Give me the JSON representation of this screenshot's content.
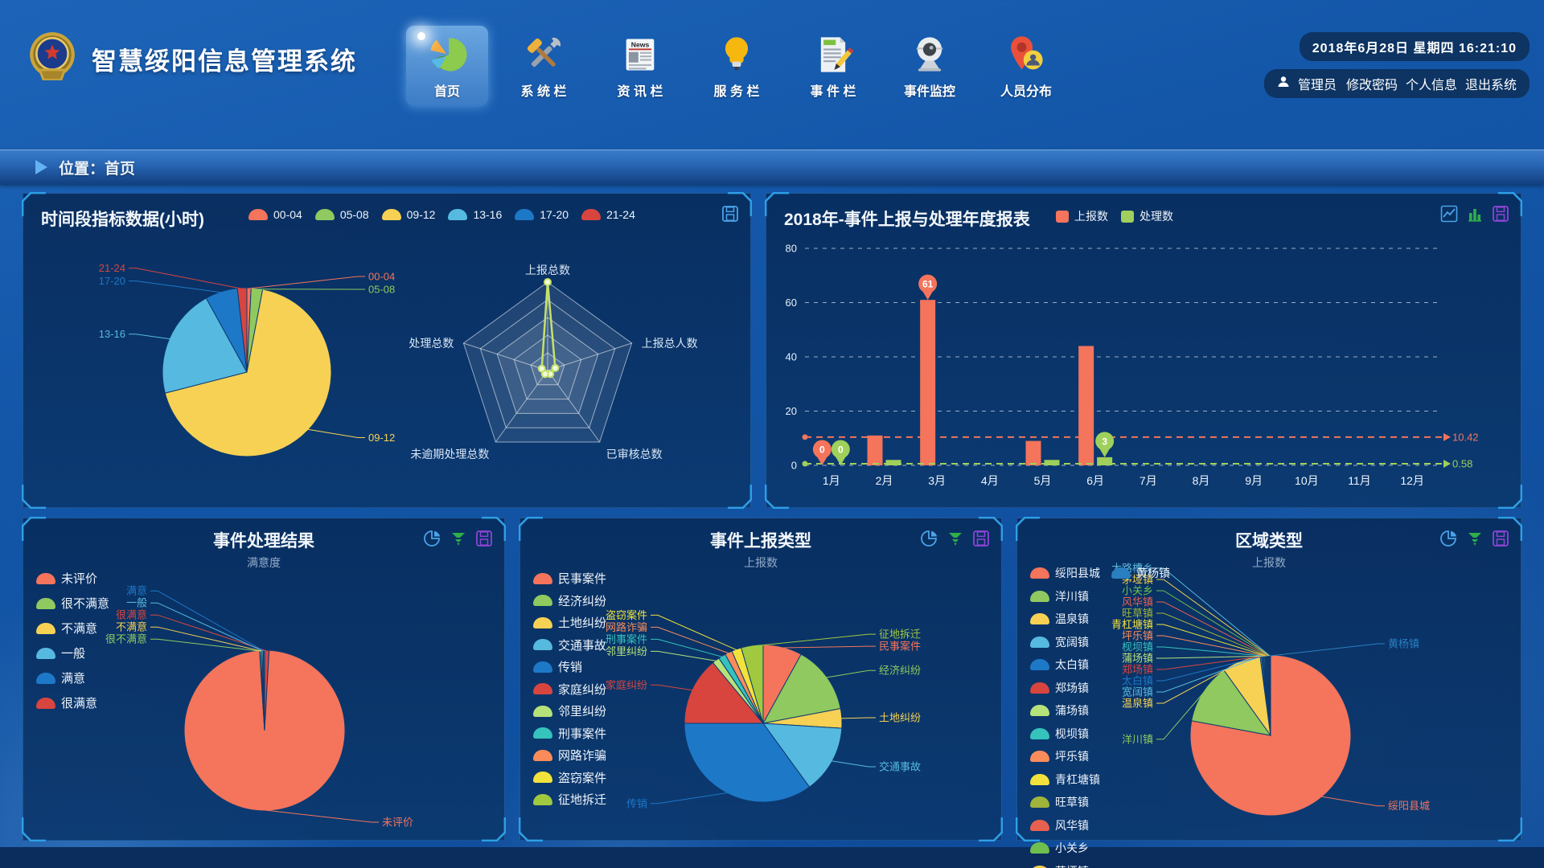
{
  "app": {
    "title": "智慧绥阳信息管理系统",
    "datetime": "2018年6月28日 星期四 16:21:10",
    "news_icon_text": "News",
    "user": {
      "name": "管理员",
      "links": [
        "修改密码",
        "个人信息",
        "退出系统"
      ]
    },
    "nav": [
      {
        "key": "home",
        "label": "首页",
        "icon": "home-pie",
        "active": true
      },
      {
        "key": "system",
        "label": "系 统 栏",
        "icon": "tools",
        "active": false
      },
      {
        "key": "news",
        "label": "资 讯 栏",
        "icon": "news",
        "active": false
      },
      {
        "key": "service",
        "label": "服 务 栏",
        "icon": "bulb",
        "active": false
      },
      {
        "key": "events",
        "label": "事 件 栏",
        "icon": "doc-pencil",
        "active": false
      },
      {
        "key": "event-monitor",
        "label": "事件监控",
        "icon": "webcam",
        "active": false
      },
      {
        "key": "people-distribution",
        "label": "人员分布",
        "icon": "map-pin",
        "active": false
      }
    ]
  },
  "breadcrumb": {
    "label": "位置：首页"
  },
  "panels": [
    {
      "id": "time",
      "title": "时间段指标数据(小时)",
      "icons": [
        {
          "name": "save-icon",
          "glyph": "save",
          "color": "#4aa3e8"
        }
      ]
    },
    {
      "id": "year",
      "title": "2018年-事件上报与处理年度报表",
      "icons": [
        {
          "name": "line-chart-icon",
          "glyph": "line",
          "color": "#4aa3e8"
        },
        {
          "name": "bar-chart-icon",
          "glyph": "bar",
          "color": "#2fae4a"
        },
        {
          "name": "save-icon",
          "glyph": "save",
          "color": "#8e44d8"
        }
      ]
    },
    {
      "id": "satisfy",
      "title": "事件处理结果",
      "subtitle": "满意度",
      "icons": [
        {
          "name": "pie-chart-icon",
          "glyph": "pie",
          "color": "#4aa3e8"
        },
        {
          "name": "funnel-icon",
          "glyph": "funnel",
          "color": "#2fae4a"
        },
        {
          "name": "save-icon",
          "glyph": "save",
          "color": "#8e44d8"
        }
      ]
    },
    {
      "id": "type",
      "title": "事件上报类型",
      "subtitle": "上报数",
      "icons": [
        {
          "name": "pie-chart-icon",
          "glyph": "pie",
          "color": "#4aa3e8"
        },
        {
          "name": "funnel-icon",
          "glyph": "funnel",
          "color": "#2fae4a"
        },
        {
          "name": "save-icon",
          "glyph": "save",
          "color": "#8e44d8"
        }
      ]
    },
    {
      "id": "region",
      "title": "区域类型",
      "subtitle": "上报数",
      "icons": [
        {
          "name": "pie-chart-icon",
          "glyph": "pie",
          "color": "#4aa3e8"
        },
        {
          "name": "funnel-icon",
          "glyph": "funnel",
          "color": "#2fae4a"
        },
        {
          "name": "save-icon",
          "glyph": "save",
          "color": "#8e44d8"
        }
      ]
    }
  ],
  "chart_data": [
    {
      "type": "pie",
      "panel": "time",
      "title": "时间段指标数据(小时)",
      "legend_position": "top",
      "slices": [
        {
          "name": "00-04",
          "value": 0.8,
          "color": "#f4745c"
        },
        {
          "name": "05-08",
          "value": 2.2,
          "color": "#8fc95f"
        },
        {
          "name": "09-12",
          "value": 68,
          "color": "#f7d154"
        },
        {
          "name": "13-16",
          "value": 21,
          "color": "#56b9e0"
        },
        {
          "name": "17-20",
          "value": 6.2,
          "color": "#1e78c8"
        },
        {
          "name": "21-24",
          "value": 1.8,
          "color": "#d8453f"
        }
      ]
    },
    {
      "type": "radar",
      "panel": "time",
      "axes": [
        "上报总数",
        "上报总人数",
        "已审核总数",
        "未逾期处理总数",
        "处理总数"
      ],
      "values": [
        100,
        9,
        5,
        5,
        7
      ],
      "max": 100,
      "levels": 5,
      "line_color": "#c6e26b"
    },
    {
      "type": "bar",
      "panel": "year",
      "title": "2018年-事件上报与处理年度报表",
      "categories": [
        "1月",
        "2月",
        "3月",
        "4月",
        "5月",
        "6月",
        "7月",
        "8月",
        "9月",
        "10月",
        "11月",
        "12月"
      ],
      "ylim": [
        0,
        80
      ],
      "yticks": [
        0,
        20,
        40,
        60,
        80
      ],
      "grid": true,
      "legend_position": "top",
      "series": [
        {
          "name": "上报数",
          "color": "#f4745c",
          "values": [
            0,
            11,
            61,
            0,
            9,
            44,
            0,
            0,
            0,
            0,
            0,
            0
          ],
          "average": 10.42,
          "average_label": "10.42"
        },
        {
          "name": "处理数",
          "color": "#9fd05b",
          "values": [
            0,
            2,
            0,
            0,
            2,
            3,
            0,
            0,
            0,
            0,
            0,
            0
          ],
          "average": 0.58,
          "average_label": "0.58"
        }
      ],
      "markpoints": [
        {
          "series": 0,
          "index": 0,
          "value": 0
        },
        {
          "series": 0,
          "index": 2,
          "value": 61
        },
        {
          "series": 1,
          "index": 0,
          "value": 0
        },
        {
          "series": 1,
          "index": 5,
          "value": 3
        }
      ]
    },
    {
      "type": "pie",
      "panel": "satisfy",
      "title": "事件处理结果",
      "subtitle": "满意度",
      "legend": [
        {
          "name": "未评价",
          "color": "#f4745c"
        },
        {
          "name": "很不满意",
          "color": "#8fc95f"
        },
        {
          "name": "不满意",
          "color": "#f7d154"
        },
        {
          "name": "一般",
          "color": "#56b9e0"
        },
        {
          "name": "满意",
          "color": "#1e78c8"
        },
        {
          "name": "很满意",
          "color": "#d8453f"
        }
      ],
      "slices": [
        {
          "name": "很满意",
          "value": 0.9,
          "color": "#d8453f",
          "side": "L"
        },
        {
          "name": "未评价",
          "value": 98.1,
          "color": "#f4745c"
        },
        {
          "name": "很不满意",
          "value": 0.25,
          "color": "#8fc95f"
        },
        {
          "name": "不满意",
          "value": 0.25,
          "color": "#f7d154"
        },
        {
          "name": "一般",
          "value": 0.25,
          "color": "#56b9e0"
        },
        {
          "name": "满意",
          "value": 0.25,
          "color": "#1e78c8"
        }
      ]
    },
    {
      "type": "pie",
      "panel": "type",
      "title": "事件上报类型",
      "subtitle": "上报数",
      "legend": [
        {
          "name": "民事案件",
          "color": "#f4745c"
        },
        {
          "name": "经济纠纷",
          "color": "#8fc95f"
        },
        {
          "name": "土地纠纷",
          "color": "#f7d154"
        },
        {
          "name": "交通事故",
          "color": "#56b9e0"
        },
        {
          "name": "传销",
          "color": "#1e78c8"
        },
        {
          "name": "家庭纠纷",
          "color": "#d8453f"
        },
        {
          "name": "邻里纠纷",
          "color": "#b6e27a"
        },
        {
          "name": "刑事案件",
          "color": "#35c3bc"
        },
        {
          "name": "网路诈骗",
          "color": "#fa8c5a"
        },
        {
          "name": "盗窃案件",
          "color": "#f2e23c"
        },
        {
          "name": "征地拆迁",
          "color": "#a0c93f"
        }
      ],
      "slices": [
        {
          "name": "民事案件",
          "value": 8,
          "color": "#f4745c"
        },
        {
          "name": "经济纠纷",
          "value": 14,
          "color": "#8fc95f"
        },
        {
          "name": "土地纠纷",
          "value": 4,
          "color": "#f7d154"
        },
        {
          "name": "交通事故",
          "value": 14,
          "color": "#56b9e0"
        },
        {
          "name": "传销",
          "value": 35,
          "color": "#1e78c8"
        },
        {
          "name": "家庭纠纷",
          "value": 14,
          "color": "#d8453f"
        },
        {
          "name": "邻里纠纷",
          "value": 1.5,
          "color": "#b6e27a"
        },
        {
          "name": "刑事案件",
          "value": 1.5,
          "color": "#35c3bc"
        },
        {
          "name": "网路诈骗",
          "value": 1.5,
          "color": "#fa8c5a"
        },
        {
          "name": "盗窃案件",
          "value": 2,
          "color": "#f2e23c"
        },
        {
          "name": "征地拆迁",
          "value": 4.5,
          "color": "#a0c93f",
          "side": "R"
        }
      ]
    },
    {
      "type": "pie",
      "panel": "region",
      "title": "区域类型",
      "subtitle": "上报数",
      "legend_left": [
        {
          "name": "绥阳县城",
          "color": "#f4745c"
        },
        {
          "name": "洋川镇",
          "color": "#8fc95f"
        },
        {
          "name": "温泉镇",
          "color": "#f7d154"
        },
        {
          "name": "宽阔镇",
          "color": "#56b9e0"
        },
        {
          "name": "太白镇",
          "color": "#1e78c8"
        },
        {
          "name": "郑场镇",
          "color": "#d8453f"
        },
        {
          "name": "蒲场镇",
          "color": "#b6e27a"
        },
        {
          "name": "枧坝镇",
          "color": "#35c3bc"
        },
        {
          "name": "坪乐镇",
          "color": "#fa8c5a"
        },
        {
          "name": "青杠塘镇",
          "color": "#f2e23c"
        },
        {
          "name": "旺草镇",
          "color": "#a0b33a"
        },
        {
          "name": "风华镇",
          "color": "#e8604f"
        },
        {
          "name": "小关乡",
          "color": "#6fbf4e"
        },
        {
          "name": "茅垭镇",
          "color": "#f2cf4a"
        },
        {
          "name": "大路槽乡",
          "color": "#5bb7dd"
        }
      ],
      "legend_right": [
        {
          "name": "黄杨镇",
          "color": "#2a7fc0"
        }
      ],
      "slices": [
        {
          "name": "绥阳县城",
          "value": 78,
          "color": "#f4745c"
        },
        {
          "name": "洋川镇",
          "value": 12.2,
          "color": "#8fc95f"
        },
        {
          "name": "温泉镇",
          "value": 7.8,
          "color": "#f7d154"
        },
        {
          "name": "宽阔镇",
          "value": 0.25,
          "color": "#56b9e0"
        },
        {
          "name": "太白镇",
          "value": 0.25,
          "color": "#1e78c8"
        },
        {
          "name": "郑场镇",
          "value": 0.2,
          "color": "#d8453f"
        },
        {
          "name": "蒲场镇",
          "value": 0.2,
          "color": "#b6e27a"
        },
        {
          "name": "枧坝镇",
          "value": 0.15,
          "color": "#35c3bc"
        },
        {
          "name": "坪乐镇",
          "value": 0.15,
          "color": "#fa8c5a"
        },
        {
          "name": "青杠塘镇",
          "value": 0.15,
          "color": "#f2e23c"
        },
        {
          "name": "旺草镇",
          "value": 0.15,
          "color": "#a0b33a"
        },
        {
          "name": "风华镇",
          "value": 0.15,
          "color": "#e8604f"
        },
        {
          "name": "小关乡",
          "value": 0.15,
          "color": "#6fbf4e"
        },
        {
          "name": "茅垭镇",
          "value": 0.1,
          "color": "#f2cf4a"
        },
        {
          "name": "大路槽乡",
          "value": 0.1,
          "color": "#5bb7dd"
        },
        {
          "name": "黄杨镇",
          "value": 0.1,
          "color": "#2a7fc0",
          "side": "R"
        }
      ]
    }
  ]
}
